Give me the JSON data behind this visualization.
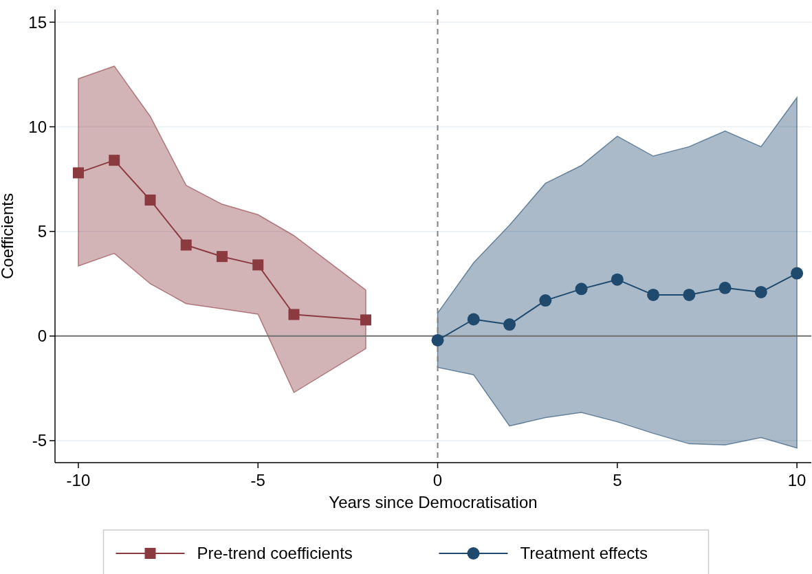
{
  "chart_data": {
    "type": "line",
    "xlabel": "Years since Democratisation",
    "ylabel": "Coefficients",
    "xlim": [
      -10.65,
      10.4
    ],
    "ylim": [
      -6.05,
      15.6
    ],
    "xticks": [
      -10,
      -5,
      0,
      5,
      10
    ],
    "yticks": [
      -5,
      0,
      5,
      10,
      15
    ],
    "grid": "y",
    "legend": "bottom",
    "series": [
      {
        "name": "Pre-trend coefficients",
        "color": "#8b3a40",
        "marker": "square",
        "x": [
          -10,
          -9,
          -8,
          -7,
          -6,
          -5,
          -4,
          -2
        ],
        "values": [
          7.8,
          8.4,
          6.5,
          4.35,
          3.8,
          3.4,
          1.03,
          0.77
        ],
        "upper": [
          12.3,
          12.9,
          10.5,
          7.2,
          6.3,
          5.8,
          4.8,
          2.2
        ],
        "lower": [
          3.35,
          3.95,
          2.5,
          1.55,
          1.3,
          1.05,
          -2.7,
          -0.6
        ]
      },
      {
        "name": "Treatment effects",
        "color": "#1f4a6e",
        "marker": "circle",
        "x": [
          0,
          1,
          2,
          3,
          4,
          5,
          6,
          7,
          8,
          9,
          10
        ],
        "values": [
          -0.2,
          0.8,
          0.55,
          1.7,
          2.25,
          2.7,
          1.97,
          1.97,
          2.3,
          2.1,
          3.0
        ],
        "upper": [
          1.1,
          3.5,
          5.3,
          7.3,
          8.15,
          9.55,
          8.6,
          9.05,
          9.8,
          9.05,
          11.4
        ],
        "lower": [
          -1.5,
          -1.85,
          -4.3,
          -3.9,
          -3.65,
          -4.1,
          -4.65,
          -5.15,
          -5.2,
          -4.85,
          -5.35
        ]
      }
    ],
    "ref_lines": [
      {
        "axis": "y",
        "value": 0,
        "color": "#707070",
        "line_style": "solid"
      },
      {
        "axis": "x",
        "value": 0,
        "color": "#808080",
        "line_style": "dashed"
      }
    ]
  }
}
